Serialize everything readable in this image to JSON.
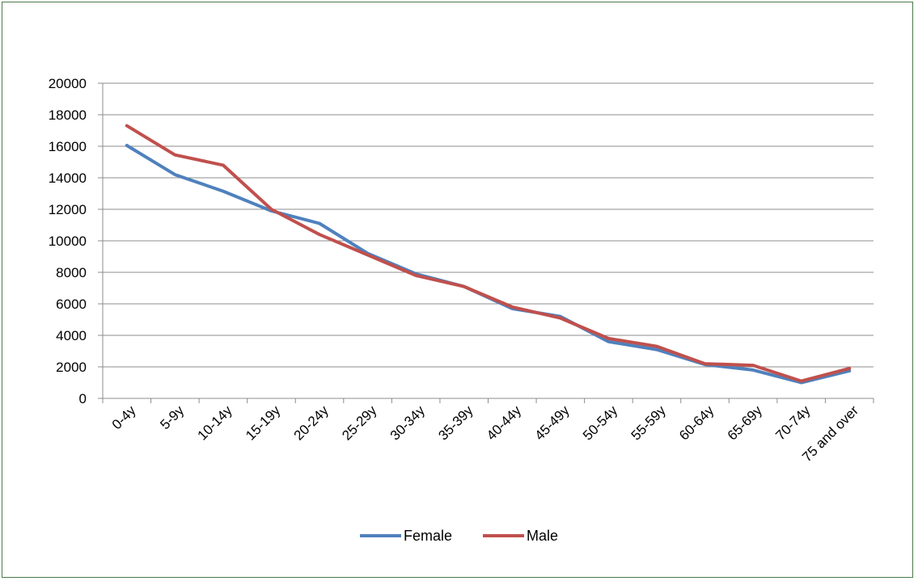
{
  "chart_data": {
    "type": "line",
    "title": "",
    "xlabel": "",
    "ylabel": "",
    "categories": [
      "0-4y",
      "5-9y",
      "10-14y",
      "15-19y",
      "20-24y",
      "25-29y",
      "30-34y",
      "35-39y",
      "40-44y",
      "45-49y",
      "50-54y",
      "55-59y",
      "60-64y",
      "65-69y",
      "70-74y",
      "75 and over"
    ],
    "ylim": [
      0,
      20000
    ],
    "yticks": [
      "0",
      "2000",
      "4000",
      "6000",
      "8000",
      "10000",
      "12000",
      "14000",
      "16000",
      "18000",
      "20000"
    ],
    "grid": "horizontal",
    "legend_position": "bottom",
    "series": [
      {
        "name": "Female",
        "color": "#4f81bd",
        "values": [
          16050,
          14200,
          13150,
          11900,
          11100,
          9200,
          7900,
          7100,
          5700,
          5200,
          3600,
          3100,
          2150,
          1800,
          1000,
          1750
        ]
      },
      {
        "name": "Male",
        "color": "#c0504d",
        "values": [
          17300,
          15450,
          14800,
          12000,
          10400,
          9100,
          7800,
          7100,
          5800,
          5100,
          3800,
          3300,
          2200,
          2100,
          1100,
          1900
        ]
      }
    ]
  }
}
